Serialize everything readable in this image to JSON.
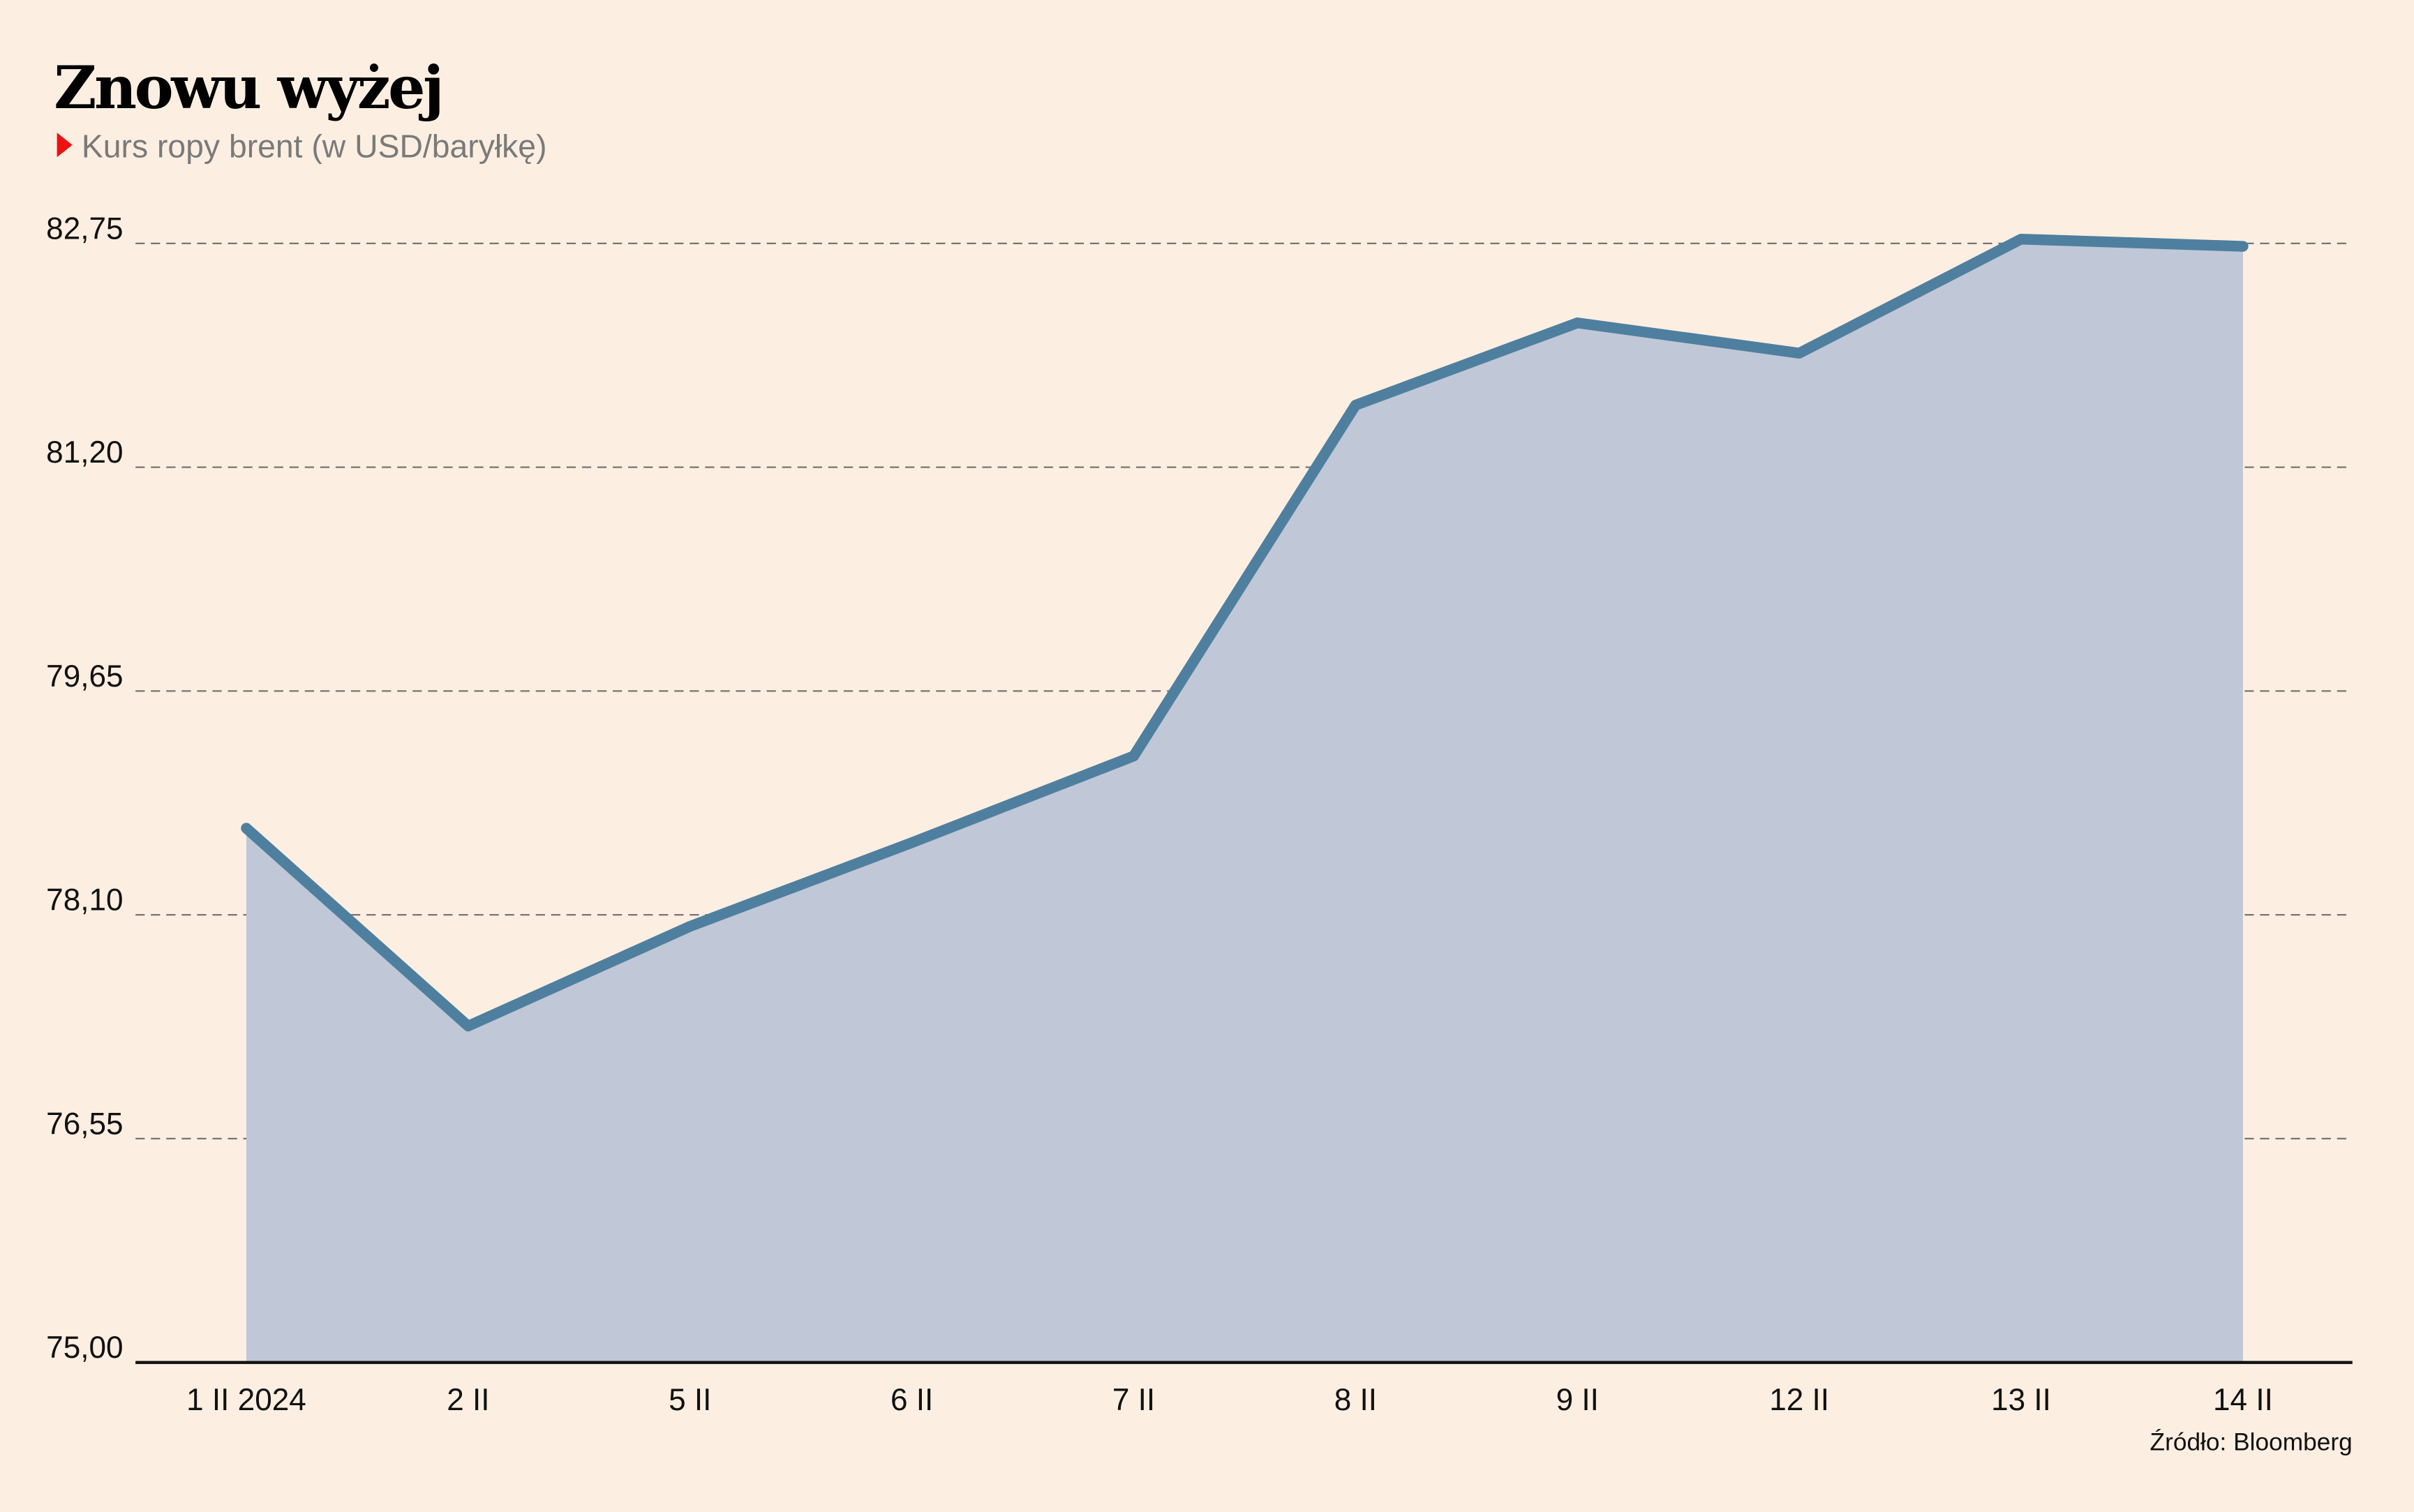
{
  "chart_data": {
    "type": "area",
    "title": "Znowu wyżej",
    "subtitle": "Kurs ropy brent (w USD/baryłkę)",
    "source": "Źródło: Bloomberg",
    "categories": [
      "1 II 2024",
      "2 II",
      "5 II",
      "6 II",
      "7 II",
      "8 II",
      "9 II",
      "12 II",
      "13 II",
      "14 II"
    ],
    "values": [
      78.7,
      77.33,
      78.02,
      78.6,
      79.2,
      81.63,
      82.2,
      81.99,
      82.78,
      82.73
    ],
    "ylim": [
      75.0,
      82.75
    ],
    "yticks": [
      75.0,
      76.55,
      78.1,
      79.65,
      81.2,
      82.75
    ],
    "ytick_labels": [
      "75,00",
      "76,55",
      "78,10",
      "79,65",
      "81,20",
      "82,75"
    ],
    "grid": true,
    "xlabel": "",
    "ylabel": "",
    "colors": {
      "line": "#4f7f9f",
      "fill": "#c0c7d6",
      "marker": "#ee1111",
      "grid": "#7a7370"
    }
  }
}
